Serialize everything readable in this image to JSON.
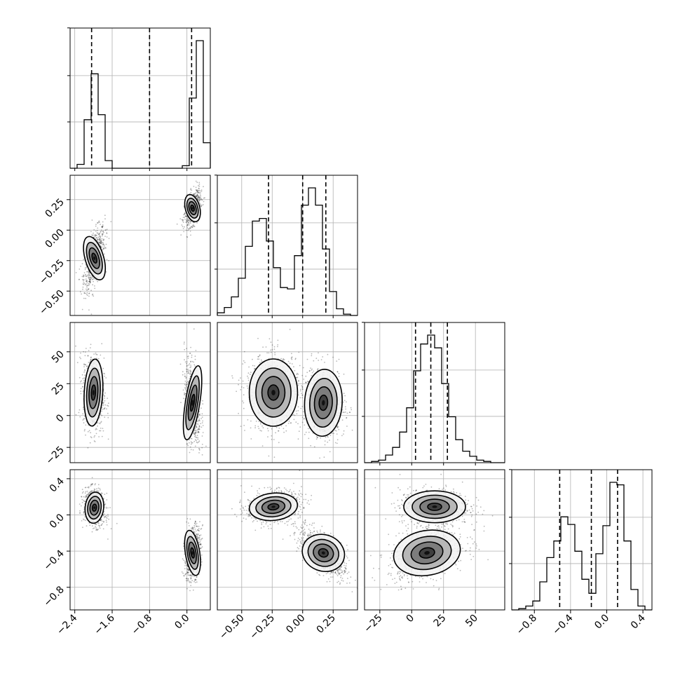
{
  "chart_data": {
    "type": "corner",
    "parameters": 4,
    "grid": true,
    "variables": [
      {
        "range": [
          -2.5,
          0.5
        ],
        "ticks": [
          -2.4,
          -1.6,
          -0.8,
          0.0
        ],
        "tick_labels": [
          "−2.4",
          "−1.6",
          "−0.8",
          "0.0"
        ]
      },
      {
        "range": [
          -0.7,
          0.45
        ],
        "ticks": [
          -0.5,
          -0.25,
          0.0,
          0.25
        ],
        "tick_labels": [
          "−0.50",
          "−0.25",
          "0.00",
          "0.25"
        ]
      },
      {
        "range": [
          -37,
          73
        ],
        "ticks": [
          -25,
          0,
          25,
          50
        ],
        "tick_labels": [
          "−25",
          "0",
          "25",
          "50"
        ]
      },
      {
        "range": [
          -1.05,
          0.5
        ],
        "ticks": [
          -0.8,
          -0.4,
          0.0,
          0.4
        ],
        "tick_labels": [
          "−0.8",
          "−0.4",
          "0.0",
          "0.4"
        ]
      }
    ],
    "histograms": [
      {
        "edges_start": -2.5,
        "bin_width": 0.15,
        "counts": [
          0,
          0.03,
          0.38,
          0.74,
          0.42,
          0.06,
          0,
          0,
          0,
          0,
          0,
          0,
          0,
          0,
          0,
          0,
          0.02,
          0.55,
          1.0,
          0.2
        ],
        "quantiles": [
          -2.04,
          -0.8,
          0.1
        ]
      },
      {
        "edges_start": -0.7,
        "bin_width": 0.0575,
        "counts": [
          0.02,
          0.06,
          0.14,
          0.28,
          0.52,
          0.71,
          0.73,
          0.56,
          0.36,
          0.21,
          0.2,
          0.45,
          0.83,
          0.96,
          0.83,
          0.5,
          0.18,
          0.05,
          0.01,
          0
        ],
        "quantiles": [
          -0.28,
          0.0,
          0.19
        ]
      },
      {
        "edges_start": -37,
        "bin_width": 5.5,
        "counts": [
          0,
          0.01,
          0.02,
          0.06,
          0.12,
          0.24,
          0.43,
          0.72,
          0.93,
          1.0,
          0.9,
          0.62,
          0.36,
          0.18,
          0.09,
          0.05,
          0.02,
          0.01,
          0,
          0
        ],
        "quantiles": [
          3,
          15,
          28
        ]
      },
      {
        "edges_start": -1.05,
        "bin_width": 0.0775,
        "counts": [
          0,
          0.01,
          0.03,
          0.07,
          0.22,
          0.41,
          0.54,
          0.73,
          0.67,
          0.46,
          0.24,
          0.13,
          0.44,
          0.66,
          1.0,
          0.98,
          0.54,
          0.16,
          0.03,
          0
        ],
        "quantiles": [
          -0.52,
          -0.17,
          0.12
        ]
      }
    ],
    "joint_panels": [
      {
        "x": 0,
        "y": 1,
        "modes": [
          {
            "cx": -1.98,
            "cy": -0.23,
            "sx": 0.09,
            "sy": 0.1,
            "rho": 0.55,
            "w": 0.55
          },
          {
            "cx": 0.12,
            "cy": 0.18,
            "sx": 0.07,
            "sy": 0.06,
            "rho": 0.5,
            "w": 0.45
          }
        ]
      },
      {
        "x": 0,
        "y": 2,
        "modes": [
          {
            "cx": -2.0,
            "cy": 18,
            "sx": 0.09,
            "sy": 12,
            "rho": -0.1,
            "w": 0.55
          },
          {
            "cx": 0.12,
            "cy": 10,
            "sx": 0.07,
            "sy": 14,
            "rho": -0.3,
            "w": 0.45
          }
        ]
      },
      {
        "x": 0,
        "y": 3,
        "modes": [
          {
            "cx": -1.98,
            "cy": 0.08,
            "sx": 0.09,
            "sy": 0.08,
            "rho": -0.2,
            "w": 0.55
          },
          {
            "cx": 0.12,
            "cy": -0.42,
            "sx": 0.07,
            "sy": 0.12,
            "rho": 0.3,
            "w": 0.45
          }
        ]
      },
      {
        "x": 1,
        "y": 2,
        "modes": [
          {
            "cx": -0.24,
            "cy": 18,
            "sx": 0.09,
            "sy": 12,
            "rho": 0.0,
            "w": 0.55
          },
          {
            "cx": 0.17,
            "cy": 10,
            "sx": 0.07,
            "sy": 12,
            "rho": -0.1,
            "w": 0.45
          }
        ]
      },
      {
        "x": 1,
        "y": 3,
        "modes": [
          {
            "cx": -0.24,
            "cy": 0.09,
            "sx": 0.09,
            "sy": 0.07,
            "rho": 0.2,
            "w": 0.5
          },
          {
            "cx": 0.17,
            "cy": -0.42,
            "sx": 0.08,
            "sy": 0.12,
            "rho": -0.65,
            "w": 0.5
          }
        ]
      },
      {
        "x": 2,
        "y": 3,
        "modes": [
          {
            "cx": 18,
            "cy": 0.09,
            "sx": 11,
            "sy": 0.08,
            "rho": 0.0,
            "w": 0.5
          },
          {
            "cx": 12,
            "cy": -0.42,
            "sx": 12,
            "sy": 0.12,
            "rho": 0.35,
            "w": 0.5
          }
        ]
      }
    ]
  }
}
